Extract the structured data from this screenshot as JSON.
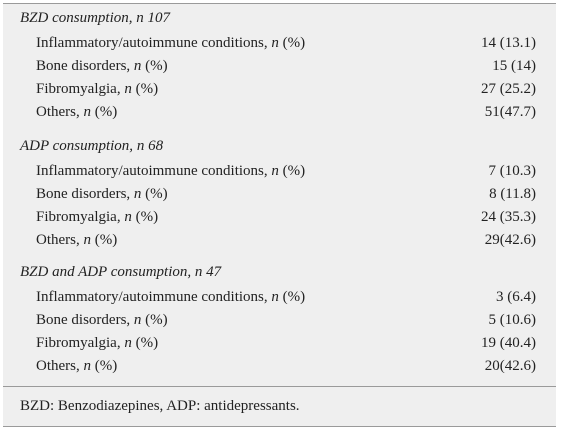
{
  "sections": [
    {
      "title": "BZD consumption, n 107",
      "rows": [
        {
          "label": "Inflammatory/autoimmune conditions, n (%)",
          "value": "14 (13.1)"
        },
        {
          "label": "Bone disorders, n (%)",
          "value": "15 (14)"
        },
        {
          "label": "Fibromyalgia, n (%)",
          "value": "27 (25.2)"
        },
        {
          "label": "Others, n (%)",
          "value": "51(47.7)"
        }
      ]
    },
    {
      "title": "ADP consumption, n 68",
      "rows": [
        {
          "label": "Inflammatory/autoimmune conditions, n (%)",
          "value": "7 (10.3)"
        },
        {
          "label": "Bone disorders, n (%)",
          "value": "8 (11.8)"
        },
        {
          "label": "Fibromyalgia, n (%)",
          "value": "24 (35.3)"
        },
        {
          "label": "Others, n (%)",
          "value": "29(42.6)"
        }
      ]
    },
    {
      "title": "BZD and ADP consumption, n 47",
      "rows": [
        {
          "label": "Inflammatory/autoimmune conditions, n (%)",
          "value": "3 (6.4)"
        },
        {
          "label": "Bone disorders, n (%)",
          "value": "5 (10.6)"
        },
        {
          "label": "Fibromyalgia, n (%)",
          "value": "19 (40.4)"
        },
        {
          "label": "Others, n (%)",
          "value": "20(42.6)"
        }
      ]
    }
  ],
  "footnote": "BZD: Benzodiazepines, ADP: antidepressants."
}
